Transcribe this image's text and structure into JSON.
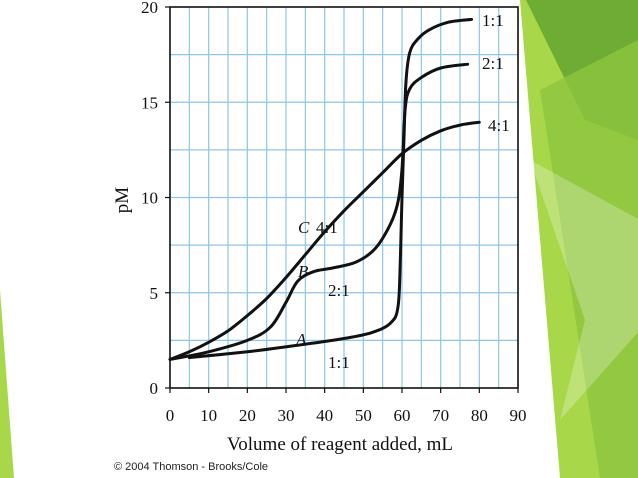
{
  "copyright": "© 2004 Thomson - Brooks/Cole",
  "colors": {
    "background": "#ffffff",
    "grid": "#8cc8e4",
    "curve": "#111111",
    "slide_accent_light": "#a8d84a",
    "slide_accent_dark": "#5c9e2e"
  },
  "chart_data": {
    "type": "line",
    "title": "",
    "xlabel": "Volume of reagent added, mL",
    "ylabel": "pM",
    "xlim": [
      0,
      90
    ],
    "ylim": [
      0,
      20
    ],
    "xticks": [
      0,
      10,
      20,
      30,
      40,
      50,
      60,
      70,
      80,
      90
    ],
    "yticks": [
      0,
      5,
      10,
      15,
      20
    ],
    "grid": true,
    "legend": "none",
    "series": [
      {
        "name": "A",
        "ratio_label_start": "1:1",
        "ratio_label_end": "1:1",
        "points": [
          [
            5,
            1.6
          ],
          [
            20,
            1.9
          ],
          [
            35,
            2.3
          ],
          [
            45,
            2.6
          ],
          [
            52,
            2.9
          ],
          [
            57,
            3.4
          ],
          [
            59,
            4.3
          ],
          [
            59.6,
            7
          ],
          [
            60,
            10
          ],
          [
            60.5,
            13
          ],
          [
            61,
            16
          ],
          [
            62,
            17.6
          ],
          [
            64,
            18.3
          ],
          [
            67,
            18.8
          ],
          [
            72,
            19.2
          ],
          [
            78,
            19.35
          ]
        ]
      },
      {
        "name": "B",
        "ratio_label_start": "2:1",
        "ratio_label_end": "2:1",
        "points": [
          [
            0,
            1.5
          ],
          [
            10,
            1.9
          ],
          [
            20,
            2.5
          ],
          [
            26,
            3.2
          ],
          [
            30,
            4.5
          ],
          [
            33,
            5.6
          ],
          [
            37,
            6.1
          ],
          [
            42,
            6.3
          ],
          [
            48,
            6.6
          ],
          [
            53,
            7.3
          ],
          [
            57,
            8.6
          ],
          [
            59,
            9.8
          ],
          [
            60,
            11.5
          ],
          [
            60.8,
            14.6
          ],
          [
            62,
            15.7
          ],
          [
            65,
            16.3
          ],
          [
            70,
            16.8
          ],
          [
            77,
            17
          ]
        ]
      },
      {
        "name": "C",
        "ratio_label_start": "4:1",
        "ratio_label_end": "4:1",
        "points": [
          [
            0,
            1.5
          ],
          [
            5,
            1.9
          ],
          [
            10,
            2.4
          ],
          [
            15,
            3.0
          ],
          [
            20,
            3.8
          ],
          [
            25,
            4.7
          ],
          [
            30,
            5.8
          ],
          [
            35,
            7.0
          ],
          [
            40,
            8.2
          ],
          [
            45,
            9.3
          ],
          [
            50,
            10.3
          ],
          [
            55,
            11.3
          ],
          [
            60,
            12.3
          ],
          [
            65,
            13.0
          ],
          [
            70,
            13.5
          ],
          [
            75,
            13.8
          ],
          [
            80,
            13.95
          ]
        ]
      }
    ]
  }
}
